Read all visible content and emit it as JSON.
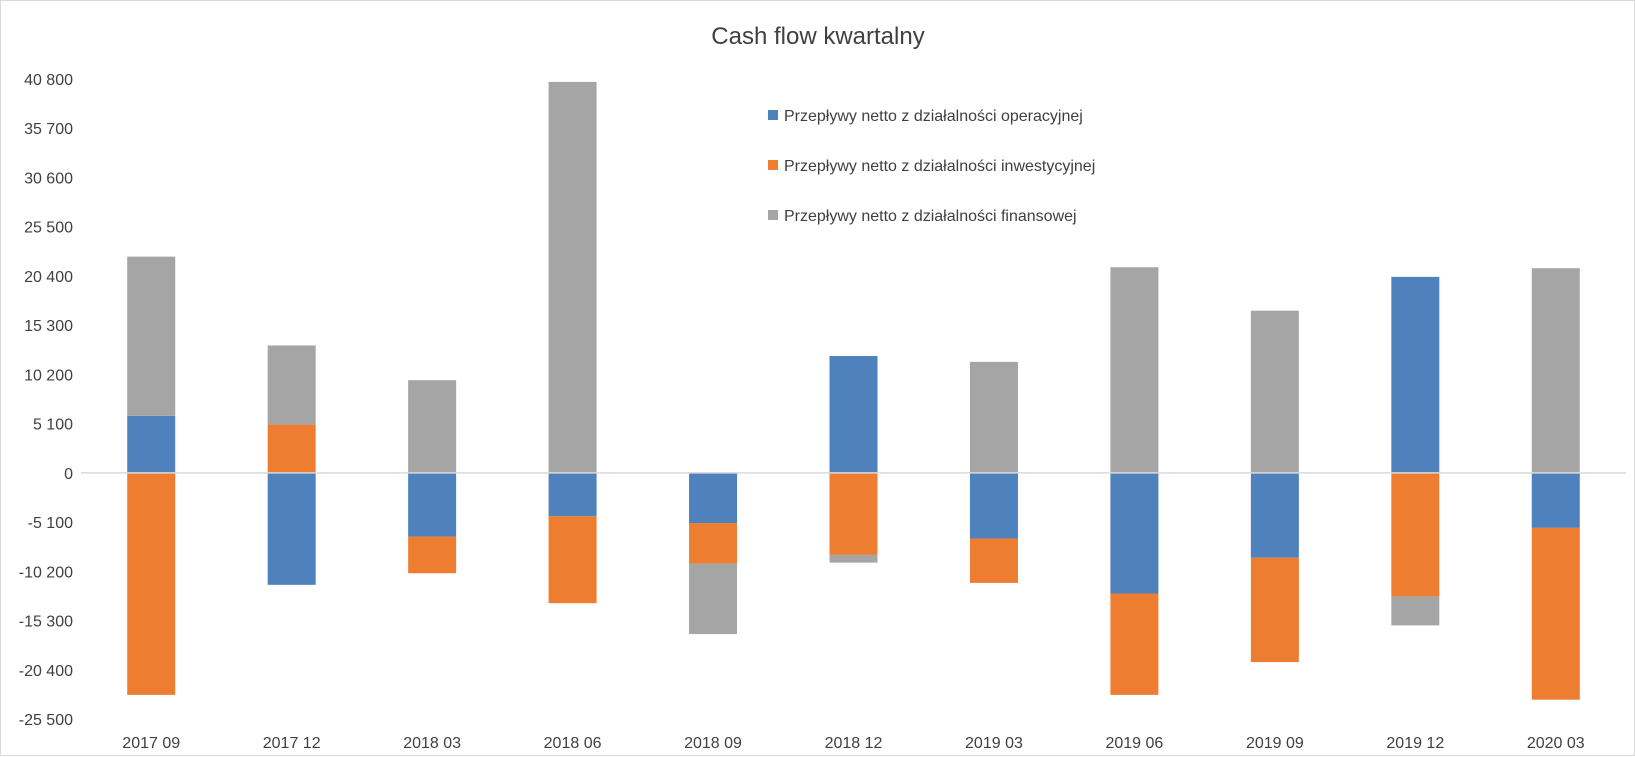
{
  "chart_data": {
    "type": "bar",
    "stacked": true,
    "title": "Cash flow kwartalny",
    "xlabel": "",
    "ylabel": "",
    "ylim": [
      -25500,
      40800
    ],
    "yticks": [
      "40 800",
      "35 700",
      "30 600",
      "25 500",
      "20 400",
      "15 300",
      "10 200",
      "5 100",
      "0",
      "-5 100",
      "-10 200",
      "-15 300",
      "-20 400",
      "-25 500"
    ],
    "ytick_values": [
      40800,
      35700,
      30600,
      25500,
      20400,
      15300,
      10200,
      5100,
      0,
      -5100,
      -10200,
      -15300,
      -20400,
      -25500
    ],
    "categories": [
      "2017 09",
      "2017 12",
      "2018 03",
      "2018 06",
      "2018 09",
      "2018 12",
      "2019 03",
      "2019 06",
      "2019 09",
      "2019 12",
      "2020 03"
    ],
    "series": [
      {
        "name": "Przepływy netto z działalności operacyjnej",
        "color": "#4f81bd",
        "values": [
          5900,
          -11600,
          -6600,
          -4500,
          -5200,
          12100,
          -6800,
          -12500,
          -8800,
          20300,
          -5700
        ]
      },
      {
        "name": "Przepływy netto z działalności inwestycyjnej",
        "color": "#ed7d31",
        "values": [
          -23000,
          5000,
          -3800,
          -9000,
          -4200,
          -8500,
          -4600,
          -10500,
          -10800,
          -12800,
          -17800
        ]
      },
      {
        "name": "Przepływy netto z działalności finansowej",
        "color": "#a5a5a5",
        "values": [
          16500,
          8200,
          9600,
          40500,
          -7300,
          -800,
          11500,
          21300,
          16800,
          -3000,
          21200
        ]
      }
    ],
    "grid": false,
    "legend_position": "top-center"
  }
}
